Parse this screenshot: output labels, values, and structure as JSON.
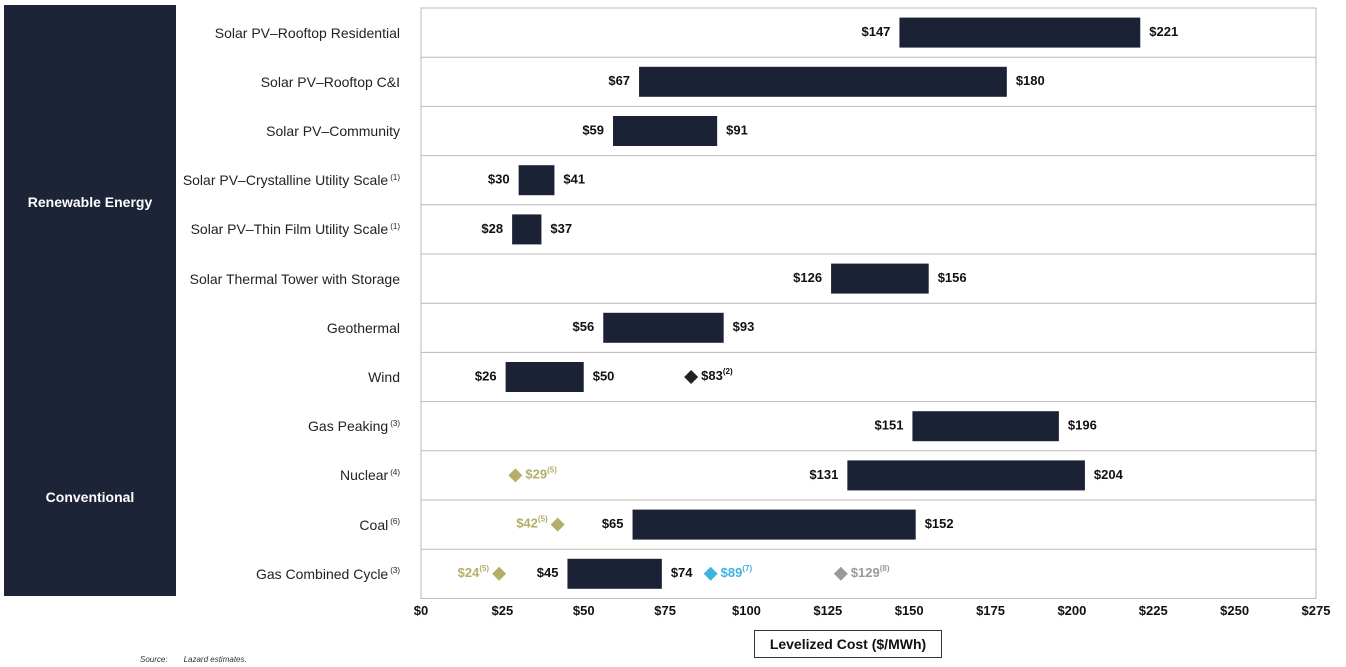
{
  "groups": [
    {
      "name": "Renewable Energy",
      "first": 0,
      "last": 7
    },
    {
      "name": "Conventional",
      "first": 8,
      "last": 11
    }
  ],
  "x_axis_title": "Levelized Cost ($/MWh)",
  "source": {
    "label": "Source:",
    "text": "Lazard estimates."
  },
  "colors": {
    "bar": "#1b2236",
    "diamond_dark": "#222222",
    "diamond_gold": "#b5ad6a",
    "diamond_blue": "#3db4e0",
    "diamond_gray": "#9a9a9a"
  },
  "chart_data": {
    "type": "bar",
    "orientation": "horizontal-floating-range",
    "xlabel": "Levelized Cost ($/MWh)",
    "xlim": [
      0,
      275
    ],
    "xticks": [
      "$0",
      "$25",
      "$50",
      "$75",
      "$100",
      "$125",
      "$150",
      "$175",
      "$200",
      "$225",
      "$250",
      "$275"
    ],
    "categories": [
      {
        "label": "Solar PV–Rooftop Residential",
        "note": "",
        "low": 147,
        "high": 221,
        "low_label": "$147",
        "high_label": "$221"
      },
      {
        "label": "Solar PV–Rooftop C&I",
        "note": "",
        "low": 67,
        "high": 180,
        "low_label": "$67",
        "high_label": "$180"
      },
      {
        "label": "Solar PV–Community",
        "note": "",
        "low": 59,
        "high": 91,
        "low_label": "$59",
        "high_label": "$91"
      },
      {
        "label": "Solar PV–Crystalline Utility Scale",
        "note": "(1)",
        "low": 30,
        "high": 41,
        "low_label": "$30",
        "high_label": "$41"
      },
      {
        "label": "Solar PV–Thin Film Utility Scale",
        "note": "(1)",
        "low": 28,
        "high": 37,
        "low_label": "$28",
        "high_label": "$37"
      },
      {
        "label": "Solar Thermal Tower with Storage",
        "note": "",
        "low": 126,
        "high": 156,
        "low_label": "$126",
        "high_label": "$156"
      },
      {
        "label": "Geothermal",
        "note": "",
        "low": 56,
        "high": 93,
        "low_label": "$56",
        "high_label": "$93"
      },
      {
        "label": "Wind",
        "note": "",
        "low": 26,
        "high": 50,
        "low_label": "$26",
        "high_label": "$50"
      },
      {
        "label": "Gas Peaking",
        "note": "(3)",
        "low": 151,
        "high": 196,
        "low_label": "$151",
        "high_label": "$196"
      },
      {
        "label": "Nuclear",
        "note": "(4)",
        "low": 131,
        "high": 204,
        "low_label": "$131",
        "high_label": "$204"
      },
      {
        "label": "Coal",
        "note": "(6)",
        "low": 65,
        "high": 152,
        "low_label": "$65",
        "high_label": "$152"
      },
      {
        "label": "Gas Combined Cycle",
        "note": "(3)",
        "low": 45,
        "high": 74,
        "low_label": "$45",
        "high_label": "$74"
      }
    ],
    "markers": [
      {
        "row": 7,
        "value": 83,
        "label": "$83",
        "note": "(2)",
        "color": "dark",
        "label_side": "right"
      },
      {
        "row": 9,
        "value": 29,
        "label": "$29",
        "note": "(5)",
        "color": "gold",
        "label_side": "right"
      },
      {
        "row": 10,
        "value": 42,
        "label": "$42",
        "note": "(5)",
        "color": "gold",
        "label_side": "left"
      },
      {
        "row": 11,
        "value": 24,
        "label": "$24",
        "note": "(5)",
        "color": "gold",
        "label_side": "left"
      },
      {
        "row": 11,
        "value": 89,
        "label": "$89",
        "note": "(7)",
        "color": "blue",
        "label_side": "right"
      },
      {
        "row": 11,
        "value": 129,
        "label": "$129",
        "note": "(8)",
        "color": "gray",
        "label_side": "right"
      }
    ]
  }
}
